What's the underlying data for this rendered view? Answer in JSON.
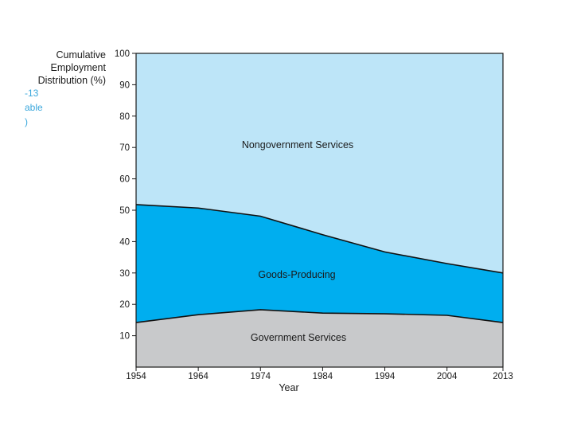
{
  "chart_data": {
    "type": "area",
    "stacked": true,
    "title": "",
    "xlabel": "Year",
    "ylabel_lines": [
      "Cumulative",
      "Employment",
      "Distribution (%)"
    ],
    "x": [
      1954,
      1964,
      1974,
      1984,
      1994,
      2004,
      2013
    ],
    "xlim": [
      1954,
      2013
    ],
    "ylim": [
      0,
      100
    ],
    "yticks": [
      10,
      20,
      30,
      40,
      50,
      60,
      70,
      80,
      90,
      100
    ],
    "xticks": [
      1954,
      1964,
      1974,
      1984,
      1994,
      2004,
      2013
    ],
    "series": [
      {
        "name": "Government Services",
        "values": [
          14.2,
          16.7,
          18.3,
          17.2,
          17.0,
          16.5,
          14.2
        ],
        "color": "#c8c9cb"
      },
      {
        "name": "Goods-Producing",
        "values": [
          37.6,
          34.0,
          29.8,
          25.0,
          19.7,
          16.5,
          15.8
        ],
        "color": "#00aeef"
      },
      {
        "name": "Nongovernment Services",
        "values": [
          48.2,
          49.3,
          51.9,
          57.8,
          63.3,
          67.0,
          70.0
        ],
        "color": "#bde5f8"
      }
    ],
    "annotations": [
      "Nongovernment Services",
      "Goods-Producing",
      "Government Services"
    ]
  },
  "overlay_fragments": [
    "-13",
    "able",
    ")"
  ],
  "colors": {
    "axis": "#1a1a1a",
    "boundary": "#111111",
    "fragment_text": "#3aa7dc"
  }
}
